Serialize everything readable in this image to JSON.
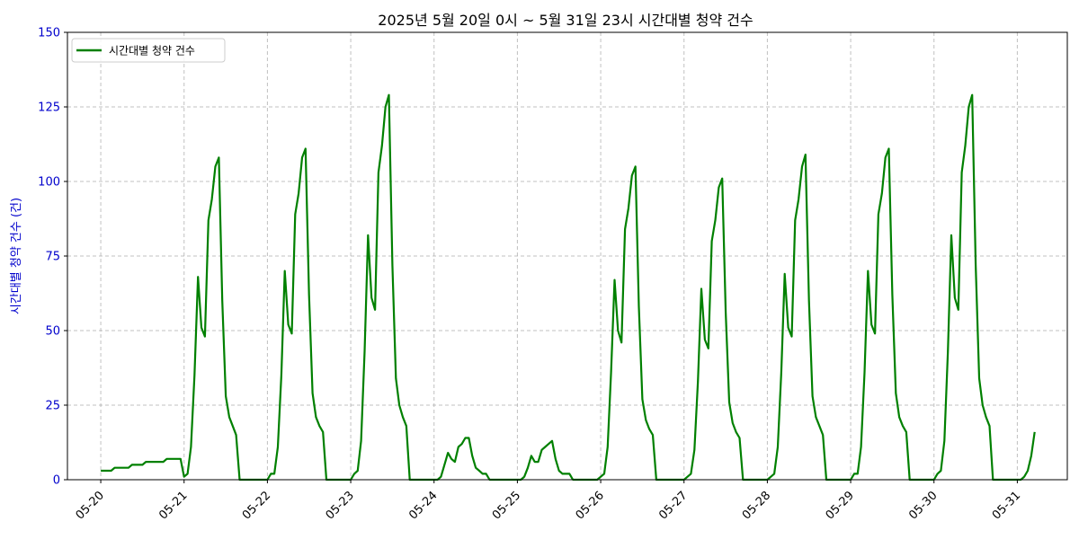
{
  "chart_data": {
    "type": "line",
    "title": "2025년 5월 20일 0시 ~ 5월 31일 23시 시간대별 청약 건수",
    "xlabel": "",
    "ylabel": "시간대별 청약 건수 (건)",
    "ylim": [
      0,
      150
    ],
    "yticks": [
      0,
      25,
      50,
      75,
      100,
      125,
      150
    ],
    "xlim_days": [
      19.6,
      31.6
    ],
    "xticks": [
      {
        "label": "05-20",
        "day": 20
      },
      {
        "label": "05-21",
        "day": 21
      },
      {
        "label": "05-22",
        "day": 22
      },
      {
        "label": "05-23",
        "day": 23
      },
      {
        "label": "05-24",
        "day": 24
      },
      {
        "label": "05-25",
        "day": 25
      },
      {
        "label": "05-26",
        "day": 26
      },
      {
        "label": "05-27",
        "day": 27
      },
      {
        "label": "05-28",
        "day": 28
      },
      {
        "label": "05-29",
        "day": 29
      },
      {
        "label": "05-30",
        "day": 30
      },
      {
        "label": "05-31",
        "day": 31
      }
    ],
    "grid": true,
    "legend_position": "top-left",
    "series": [
      {
        "name": "시간대별 청약 건수",
        "color": "#008000",
        "points": [
          [
            20.0,
            3
          ],
          [
            20.125,
            3
          ],
          [
            20.167,
            4
          ],
          [
            20.25,
            4
          ],
          [
            20.333,
            4
          ],
          [
            20.375,
            5
          ],
          [
            20.5,
            5
          ],
          [
            20.542,
            6
          ],
          [
            20.667,
            6
          ],
          [
            20.75,
            6
          ],
          [
            20.792,
            7
          ],
          [
            20.958,
            7
          ],
          [
            21.0,
            1
          ],
          [
            21.042,
            2
          ],
          [
            21.083,
            11
          ],
          [
            21.125,
            35
          ],
          [
            21.167,
            68
          ],
          [
            21.208,
            51
          ],
          [
            21.25,
            48
          ],
          [
            21.292,
            87
          ],
          [
            21.333,
            94
          ],
          [
            21.375,
            105
          ],
          [
            21.417,
            108
          ],
          [
            21.458,
            60
          ],
          [
            21.5,
            28
          ],
          [
            21.542,
            21
          ],
          [
            21.583,
            18
          ],
          [
            21.625,
            15
          ],
          [
            21.667,
            0
          ],
          [
            21.958,
            0
          ],
          [
            22.0,
            0
          ],
          [
            22.042,
            2
          ],
          [
            22.083,
            2
          ],
          [
            22.125,
            11
          ],
          [
            22.167,
            35
          ],
          [
            22.208,
            70
          ],
          [
            22.25,
            52
          ],
          [
            22.292,
            49
          ],
          [
            22.333,
            89
          ],
          [
            22.375,
            96
          ],
          [
            22.417,
            108
          ],
          [
            22.458,
            111
          ],
          [
            22.5,
            62
          ],
          [
            22.542,
            29
          ],
          [
            22.583,
            21
          ],
          [
            22.625,
            18
          ],
          [
            22.667,
            16
          ],
          [
            22.708,
            0
          ],
          [
            22.958,
            0
          ],
          [
            23.0,
            0
          ],
          [
            23.042,
            2
          ],
          [
            23.083,
            3
          ],
          [
            23.125,
            13
          ],
          [
            23.167,
            43
          ],
          [
            23.208,
            82
          ],
          [
            23.25,
            61
          ],
          [
            23.292,
            57
          ],
          [
            23.333,
            103
          ],
          [
            23.375,
            112
          ],
          [
            23.417,
            125
          ],
          [
            23.458,
            129
          ],
          [
            23.5,
            72
          ],
          [
            23.542,
            34
          ],
          [
            23.583,
            25
          ],
          [
            23.625,
            21
          ],
          [
            23.667,
            18
          ],
          [
            23.708,
            0
          ],
          [
            23.958,
            0
          ],
          [
            24.0,
            0
          ],
          [
            24.042,
            0
          ],
          [
            24.083,
            1
          ],
          [
            24.125,
            5
          ],
          [
            24.167,
            9
          ],
          [
            24.208,
            7
          ],
          [
            24.25,
            6
          ],
          [
            24.292,
            11
          ],
          [
            24.333,
            12
          ],
          [
            24.375,
            14
          ],
          [
            24.417,
            14
          ],
          [
            24.458,
            8
          ],
          [
            24.5,
            4
          ],
          [
            24.542,
            3
          ],
          [
            24.583,
            2
          ],
          [
            24.625,
            2
          ],
          [
            24.667,
            0
          ],
          [
            24.958,
            0
          ],
          [
            25.0,
            0
          ],
          [
            25.042,
            0
          ],
          [
            25.083,
            1
          ],
          [
            25.125,
            4
          ],
          [
            25.167,
            8
          ],
          [
            25.208,
            6
          ],
          [
            25.25,
            6
          ],
          [
            25.292,
            10
          ],
          [
            25.333,
            11
          ],
          [
            25.375,
            12
          ],
          [
            25.417,
            13
          ],
          [
            25.458,
            7
          ],
          [
            25.5,
            3
          ],
          [
            25.542,
            2
          ],
          [
            25.583,
            2
          ],
          [
            25.625,
            2
          ],
          [
            25.667,
            0
          ],
          [
            25.958,
            0
          ],
          [
            26.0,
            1
          ],
          [
            26.042,
            2
          ],
          [
            26.083,
            11
          ],
          [
            26.125,
            36
          ],
          [
            26.167,
            67
          ],
          [
            26.208,
            50
          ],
          [
            26.25,
            46
          ],
          [
            26.292,
            84
          ],
          [
            26.333,
            91
          ],
          [
            26.375,
            102
          ],
          [
            26.417,
            105
          ],
          [
            26.458,
            58
          ],
          [
            26.5,
            27
          ],
          [
            26.542,
            20
          ],
          [
            26.583,
            17
          ],
          [
            26.625,
            15
          ],
          [
            26.667,
            0
          ],
          [
            26.958,
            0
          ],
          [
            27.0,
            0
          ],
          [
            27.042,
            1
          ],
          [
            27.083,
            2
          ],
          [
            27.125,
            10
          ],
          [
            27.167,
            33
          ],
          [
            27.208,
            64
          ],
          [
            27.25,
            47
          ],
          [
            27.292,
            44
          ],
          [
            27.333,
            80
          ],
          [
            27.375,
            87
          ],
          [
            27.417,
            98
          ],
          [
            27.458,
            101
          ],
          [
            27.5,
            56
          ],
          [
            27.542,
            26
          ],
          [
            27.583,
            19
          ],
          [
            27.625,
            16
          ],
          [
            27.667,
            14
          ],
          [
            27.708,
            0
          ],
          [
            27.958,
            0
          ],
          [
            28.0,
            0
          ],
          [
            28.042,
            1
          ],
          [
            28.083,
            2
          ],
          [
            28.125,
            11
          ],
          [
            28.167,
            36
          ],
          [
            28.208,
            69
          ],
          [
            28.25,
            51
          ],
          [
            28.292,
            48
          ],
          [
            28.333,
            87
          ],
          [
            28.375,
            94
          ],
          [
            28.417,
            105
          ],
          [
            28.458,
            109
          ],
          [
            28.5,
            60
          ],
          [
            28.542,
            28
          ],
          [
            28.583,
            21
          ],
          [
            28.625,
            18
          ],
          [
            28.667,
            15
          ],
          [
            28.708,
            0
          ],
          [
            28.958,
            0
          ],
          [
            29.0,
            0
          ],
          [
            29.042,
            2
          ],
          [
            29.083,
            2
          ],
          [
            29.125,
            11
          ],
          [
            29.167,
            36
          ],
          [
            29.208,
            70
          ],
          [
            29.25,
            52
          ],
          [
            29.292,
            49
          ],
          [
            29.333,
            89
          ],
          [
            29.375,
            96
          ],
          [
            29.417,
            108
          ],
          [
            29.458,
            111
          ],
          [
            29.5,
            62
          ],
          [
            29.542,
            29
          ],
          [
            29.583,
            21
          ],
          [
            29.625,
            18
          ],
          [
            29.667,
            16
          ],
          [
            29.708,
            0
          ],
          [
            29.958,
            0
          ],
          [
            30.0,
            0
          ],
          [
            30.042,
            2
          ],
          [
            30.083,
            3
          ],
          [
            30.125,
            13
          ],
          [
            30.167,
            43
          ],
          [
            30.208,
            82
          ],
          [
            30.25,
            61
          ],
          [
            30.292,
            57
          ],
          [
            30.333,
            103
          ],
          [
            30.375,
            112
          ],
          [
            30.417,
            125
          ],
          [
            30.458,
            129
          ],
          [
            30.5,
            72
          ],
          [
            30.542,
            34
          ],
          [
            30.583,
            25
          ],
          [
            30.625,
            21
          ],
          [
            30.667,
            18
          ],
          [
            30.708,
            0
          ],
          [
            30.958,
            0
          ],
          [
            31.0,
            0
          ],
          [
            31.042,
            0
          ],
          [
            31.083,
            1
          ],
          [
            31.125,
            3
          ],
          [
            31.167,
            8
          ],
          [
            31.208,
            16
          ]
        ]
      }
    ]
  }
}
